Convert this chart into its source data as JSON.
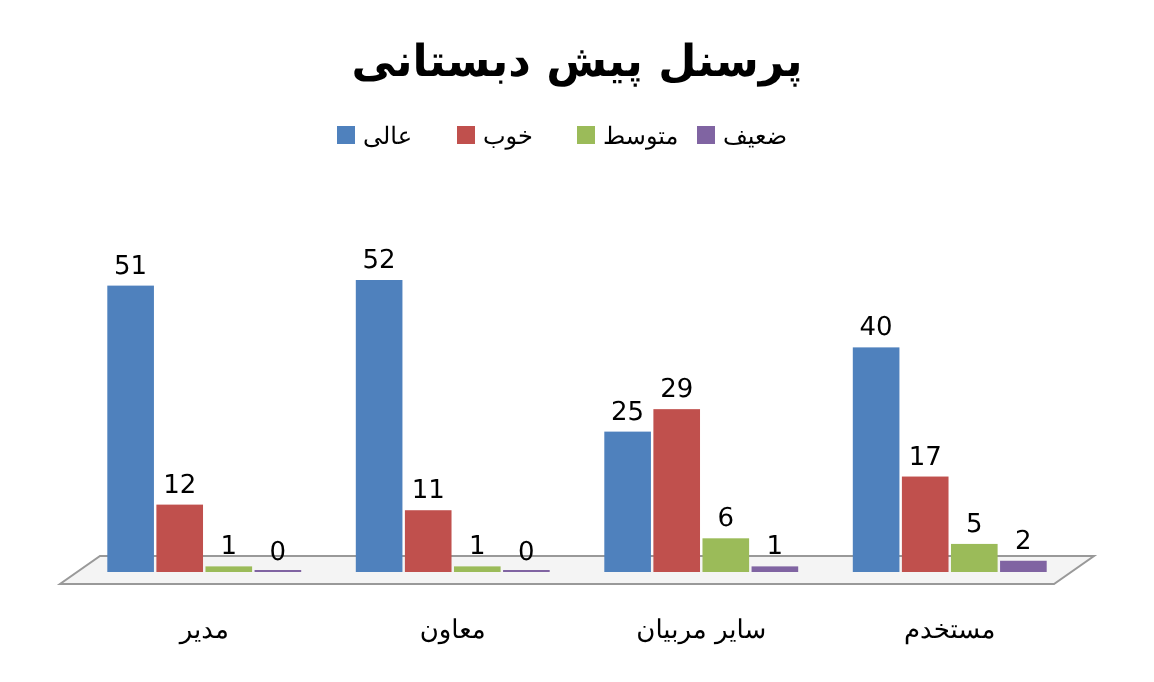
{
  "chart_data": {
    "type": "bar",
    "title": "پرسنل پیش دبستانی",
    "categories": [
      "مدیر",
      "معاون",
      "سایر مربیان",
      "مستخدم"
    ],
    "series": [
      {
        "name": "عالی",
        "color": "#4f81bd",
        "values": [
          51,
          52,
          25,
          40
        ]
      },
      {
        "name": "خوب",
        "color": "#c0504d",
        "values": [
          12,
          11,
          29,
          17
        ]
      },
      {
        "name": "متوسط",
        "color": "#9bbb59",
        "values": [
          1,
          1,
          6,
          5
        ]
      },
      {
        "name": "ضعیف",
        "color": "#8064a2",
        "values": [
          0,
          0,
          1,
          2
        ]
      }
    ],
    "data_labels": true,
    "legend": "top",
    "grid": false
  }
}
